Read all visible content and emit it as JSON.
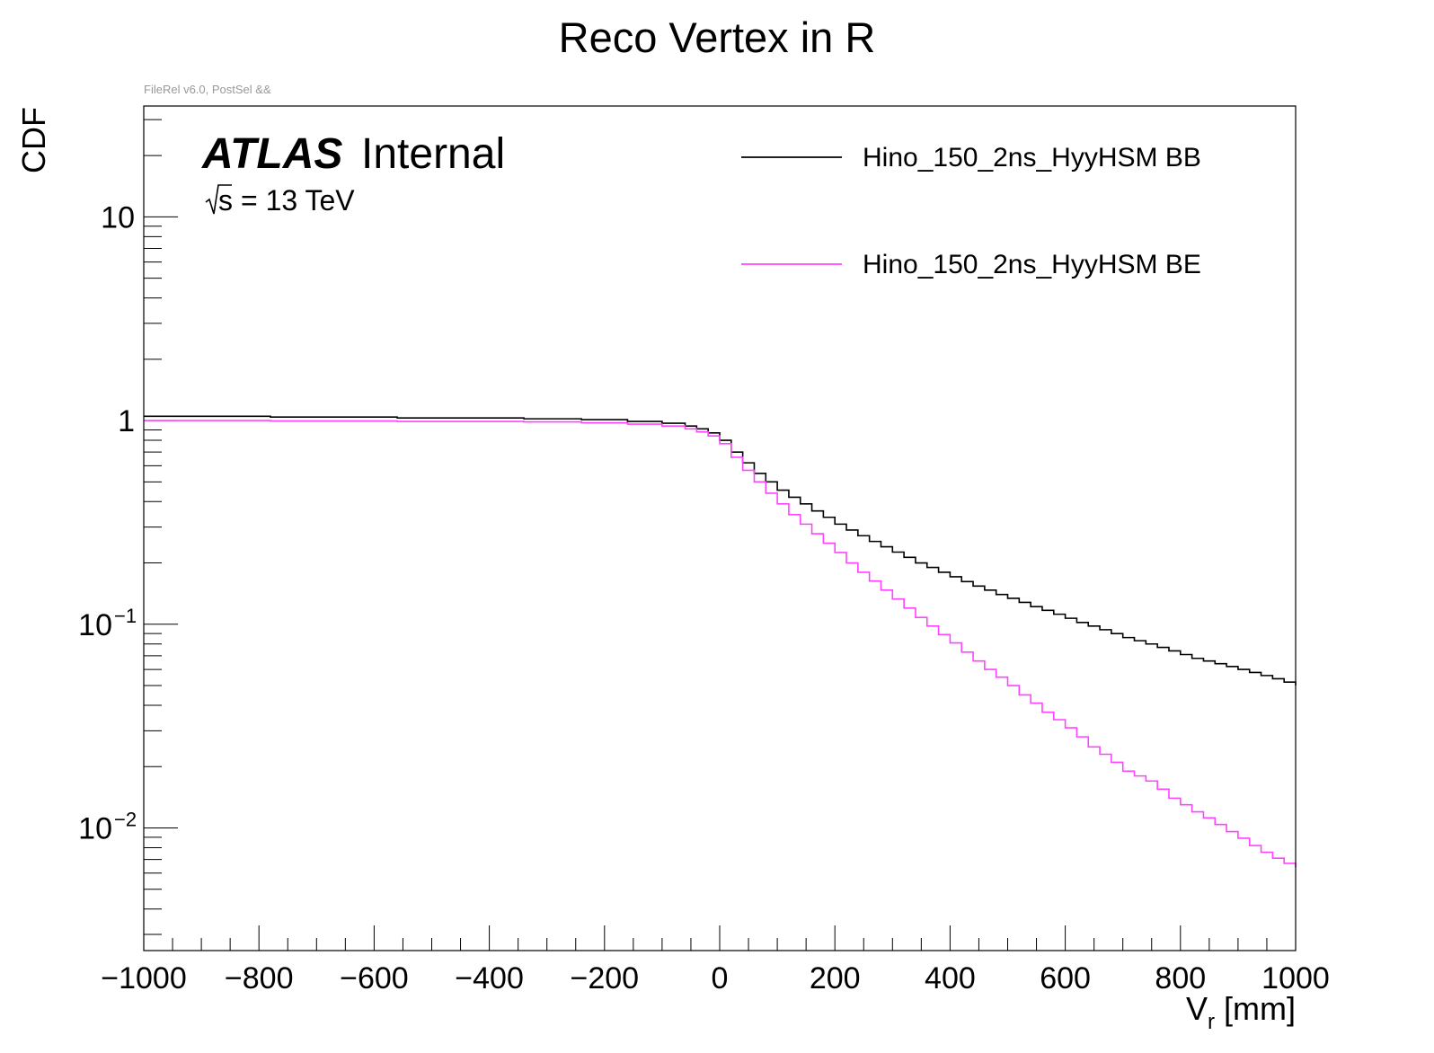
{
  "title": "Reco Vertex in R",
  "caption": "FileRel v6.0, PostSel &&",
  "atlas": {
    "bold": "ATLAS",
    "label": "Internal",
    "energy": "= 13 TeV",
    "sqrt_s": "s"
  },
  "colors": {
    "BB": "#000000",
    "BE": "#ff44ff",
    "frame": "#000000",
    "caption": "#999999"
  },
  "chart_data": {
    "type": "line",
    "title": "Reco Vertex in R",
    "xlabel_main": "V",
    "xlabel_sub": "r",
    "xlabel_unit": "[mm]",
    "ylabel": "CDF",
    "xlim": [
      -1000,
      1000
    ],
    "ylim": [
      0.0025,
      35
    ],
    "yscale": "log",
    "grid": false,
    "legend_position": "top-right",
    "x_ticks": [
      {
        "value": -1000,
        "label": "−1000"
      },
      {
        "value": -800,
        "label": "−800"
      },
      {
        "value": -600,
        "label": "−600"
      },
      {
        "value": -400,
        "label": "−400"
      },
      {
        "value": -200,
        "label": "−200"
      },
      {
        "value": 0,
        "label": "0"
      },
      {
        "value": 200,
        "label": "200"
      },
      {
        "value": 400,
        "label": "400"
      },
      {
        "value": 600,
        "label": "600"
      },
      {
        "value": 800,
        "label": "800"
      },
      {
        "value": 1000,
        "label": "1000"
      }
    ],
    "y_ticks": [
      {
        "value": 10,
        "base": "10",
        "exp": ""
      },
      {
        "value": 1,
        "base": "1",
        "exp": ""
      },
      {
        "value": 0.1,
        "base": "10",
        "exp": "−1"
      },
      {
        "value": 0.01,
        "base": "10",
        "exp": "−2"
      }
    ],
    "x": [
      -1000,
      -780,
      -560,
      -340,
      -240,
      -160,
      -100,
      -60,
      -40,
      -20,
      0,
      20,
      40,
      60,
      80,
      100,
      120,
      140,
      160,
      180,
      200,
      220,
      240,
      260,
      280,
      300,
      320,
      340,
      360,
      380,
      400,
      420,
      440,
      460,
      480,
      500,
      520,
      540,
      560,
      580,
      600,
      620,
      640,
      660,
      680,
      700,
      720,
      740,
      760,
      780,
      800,
      820,
      840,
      860,
      880,
      900,
      920,
      940,
      960,
      980,
      1000
    ],
    "series": [
      {
        "name": "Hino_150_2ns_HyyHSM BB",
        "color": "#000000",
        "values": [
          1.05,
          1.04,
          1.03,
          1.02,
          1.01,
          0.99,
          0.97,
          0.94,
          0.91,
          0.87,
          0.8,
          0.7,
          0.62,
          0.55,
          0.5,
          0.455,
          0.42,
          0.39,
          0.36,
          0.335,
          0.31,
          0.29,
          0.272,
          0.255,
          0.24,
          0.226,
          0.213,
          0.2,
          0.19,
          0.18,
          0.171,
          0.162,
          0.154,
          0.147,
          0.14,
          0.134,
          0.128,
          0.122,
          0.117,
          0.112,
          0.107,
          0.102,
          0.098,
          0.094,
          0.09,
          0.086,
          0.083,
          0.08,
          0.077,
          0.074,
          0.071,
          0.068,
          0.066,
          0.064,
          0.062,
          0.06,
          0.058,
          0.056,
          0.054,
          0.052,
          0.05
        ]
      },
      {
        "name": "Hino_150_2ns_HyyHSM BE",
        "color": "#ff44ff",
        "values": [
          1.0,
          0.995,
          0.99,
          0.985,
          0.975,
          0.96,
          0.94,
          0.91,
          0.88,
          0.84,
          0.77,
          0.66,
          0.57,
          0.5,
          0.44,
          0.39,
          0.345,
          0.31,
          0.278,
          0.25,
          0.225,
          0.2,
          0.18,
          0.163,
          0.147,
          0.133,
          0.12,
          0.108,
          0.098,
          0.089,
          0.081,
          0.073,
          0.066,
          0.06,
          0.055,
          0.05,
          0.045,
          0.041,
          0.037,
          0.034,
          0.031,
          0.028,
          0.025,
          0.023,
          0.021,
          0.019,
          0.018,
          0.017,
          0.0155,
          0.014,
          0.013,
          0.012,
          0.0112,
          0.0104,
          0.0096,
          0.0089,
          0.0082,
          0.0076,
          0.0071,
          0.0067,
          0.0064
        ]
      }
    ]
  }
}
